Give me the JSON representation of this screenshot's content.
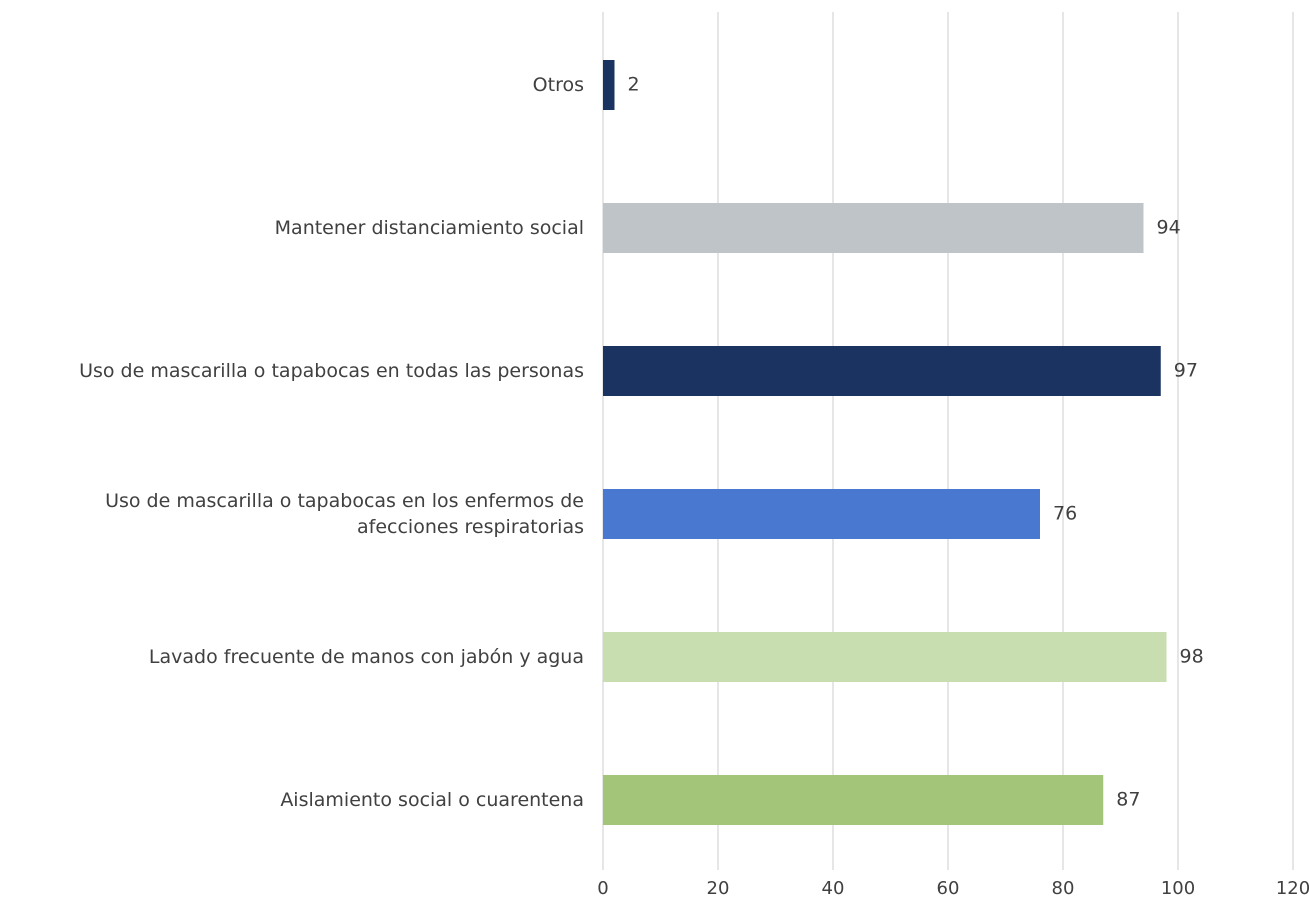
{
  "chart_data": {
    "type": "barh",
    "categories": [
      "Otros",
      "Mantener distanciamiento social",
      "Uso de mascarilla o tapabocas en todas las personas",
      "Uso de mascarilla o tapabocas en los enfermos de afecciones respiratorias",
      "Lavado frecuente de manos con jabón y agua",
      "Aislamiento social o cuarentena"
    ],
    "values": [
      2,
      94,
      97,
      76,
      98,
      87
    ],
    "colors": [
      "#1b3360",
      "#bfc4c8",
      "#1b3360",
      "#4878cf",
      "#c8ddb0",
      "#a2c57a"
    ],
    "xlim": [
      0,
      120
    ],
    "xticks": [
      0,
      20,
      40,
      60,
      80,
      100,
      120
    ],
    "grid": true
  }
}
